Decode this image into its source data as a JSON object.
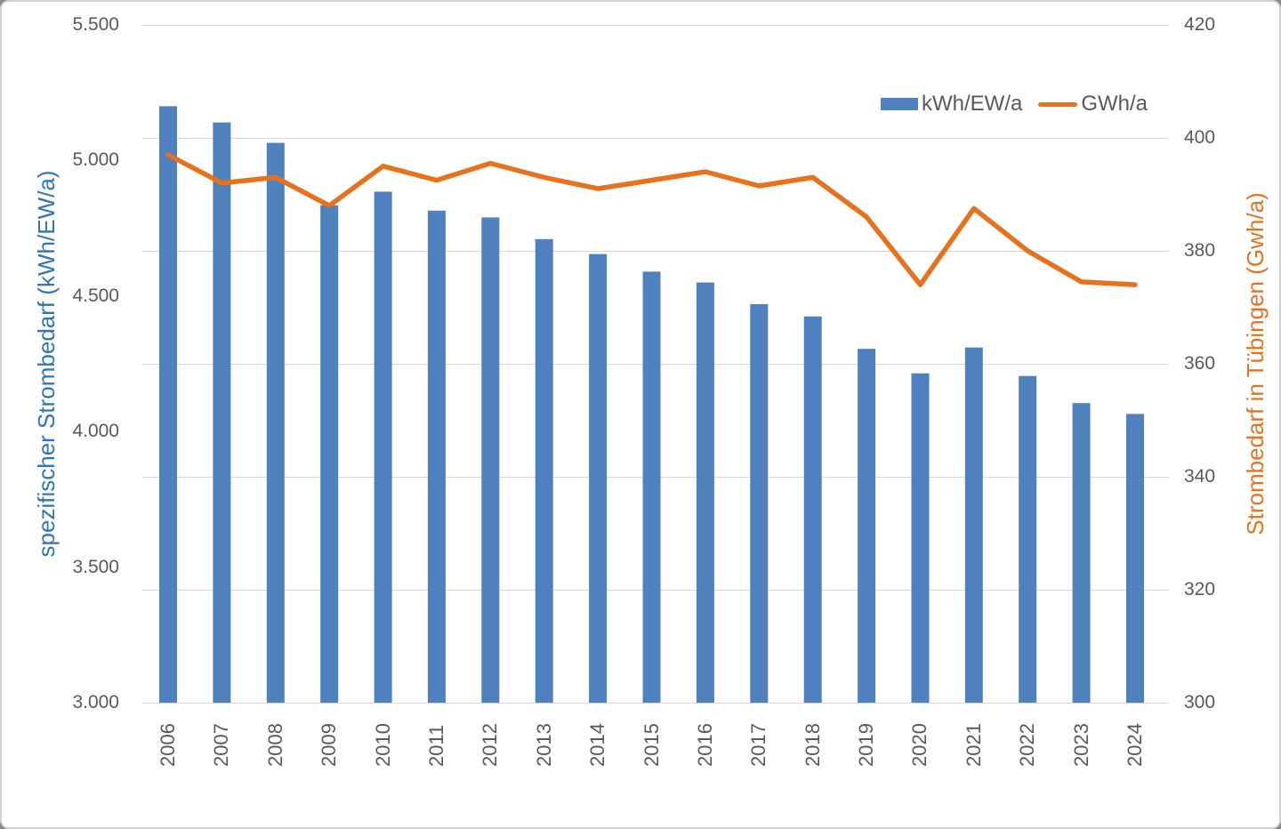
{
  "chart_data": {
    "type": "combo-bar-line",
    "title": "",
    "categories": [
      "2006",
      "2007",
      "2008",
      "2009",
      "2010",
      "2011",
      "2012",
      "2013",
      "2014",
      "2015",
      "2016",
      "2017",
      "2018",
      "2019",
      "2020",
      "2021",
      "2022",
      "2023",
      "2024"
    ],
    "series": [
      {
        "name": "kWh/EW/a",
        "type": "bar",
        "axis": "left",
        "values": [
          5200,
          5140,
          5065,
          4835,
          4885,
          4815,
          4790,
          4710,
          4655,
          4590,
          4550,
          4470,
          4425,
          4305,
          4215,
          4310,
          4205,
          4105,
          4065
        ]
      },
      {
        "name": "GWh/a",
        "type": "line",
        "axis": "right",
        "values": [
          397,
          392,
          393,
          388,
          395,
          392.5,
          395.5,
          393,
          391,
          392.5,
          394,
          391.5,
          393,
          386,
          374,
          387.5,
          380,
          374.5,
          374
        ]
      }
    ],
    "left_axis": {
      "title": "spezifischer Strombedarf (kWh/EW/a)",
      "min": 3000,
      "max": 5500,
      "step": 500,
      "tick_labels": [
        "5.500",
        "5.000",
        "4.500",
        "4.000",
        "3.500",
        "3.000"
      ]
    },
    "right_axis": {
      "title": "Strombedarf in Tübingen (Gwh/a)",
      "min": 300,
      "max": 420,
      "step": 20,
      "tick_labels": [
        "420",
        "400",
        "380",
        "360",
        "340",
        "320",
        "300"
      ]
    },
    "legend_position": "top-right-inside",
    "grid": "horizontal-on-right-axis-ticks",
    "colors": {
      "bar": "#4e81bd",
      "line": "#e8711c",
      "left_title": "#2e75b6",
      "right_title": "#e8711c",
      "grid": "#d9d9d9",
      "tick_text": "#595959"
    }
  }
}
